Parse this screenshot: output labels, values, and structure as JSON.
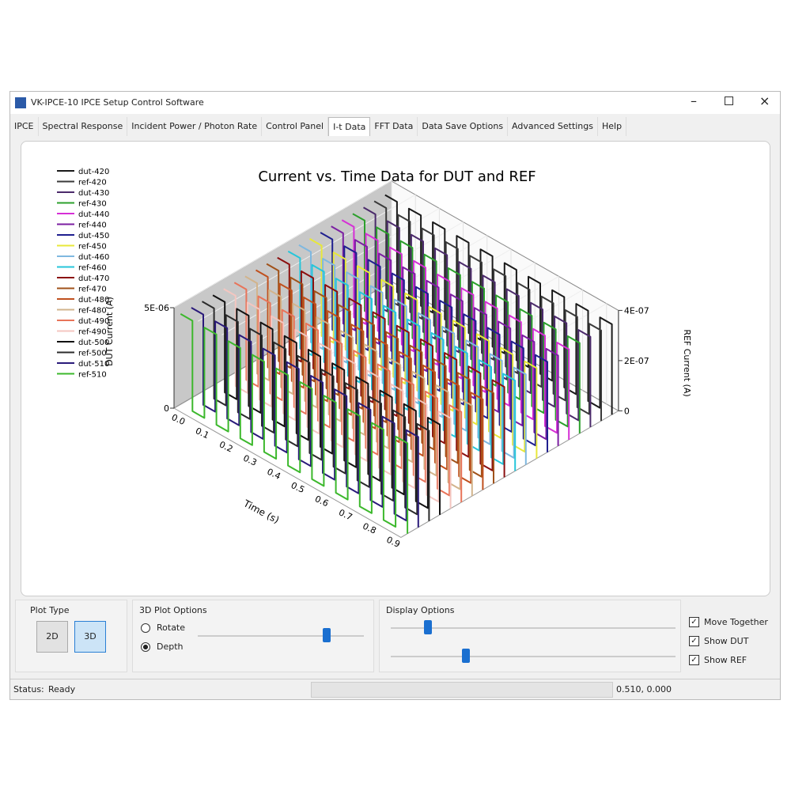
{
  "window": {
    "title": "VK-IPCE-10 IPCE Setup Control Software"
  },
  "tabs": [
    {
      "label": "IPCE"
    },
    {
      "label": "Spectral Response"
    },
    {
      "label": "Incident Power / Photon Rate"
    },
    {
      "label": "Control Panel"
    },
    {
      "label": "I-t Data",
      "active": true
    },
    {
      "label": "FFT Data"
    },
    {
      "label": "Data Save Options"
    },
    {
      "label": "Advanced Settings"
    },
    {
      "label": "Help"
    }
  ],
  "chart_data": {
    "type": "3d-waterfall",
    "title": "Current vs. Time Data for DUT and REF",
    "x_label": "Time (s)",
    "y_label": "DUT Current (A)",
    "y2_label": "REF Current (A)",
    "step": true,
    "xlim": [
      0,
      0.95
    ],
    "ylim": [
      0,
      5e-06
    ],
    "y2lim": [
      0,
      4e-07
    ],
    "xticks": [
      {
        "value": 0,
        "label": "0.0"
      },
      0.1,
      0.2,
      0.3,
      0.4,
      0.5,
      0.6,
      0.7,
      0.8,
      0.9
    ],
    "yticks": [
      0,
      {
        "value": 5e-06,
        "label": "5E-06"
      }
    ],
    "y2ticks": [
      0,
      {
        "value": 2e-07,
        "label": "2E-07"
      },
      {
        "value": 4e-07,
        "label": "4E-07"
      }
    ],
    "x": [
      0,
      0.05,
      0.1,
      0.15,
      0.2,
      0.25,
      0.3,
      0.35,
      0.4,
      0.45,
      0.5,
      0.55,
      0.6,
      0.65,
      0.7,
      0.75,
      0.8,
      0.85,
      0.9,
      0.95
    ],
    "series": [
      {
        "name": "dut-420",
        "color": "#1a1a1a",
        "values": [
          4.5e-06,
          0,
          4.5e-06,
          0,
          4.5e-06,
          0,
          4.5e-06,
          0,
          4.5e-06,
          0,
          4.5e-06,
          0,
          4.5e-06,
          0,
          4.5e-06,
          0,
          4.5e-06,
          0,
          4.5e-06,
          0
        ]
      },
      {
        "name": "ref-420",
        "color": "#3a3a3a",
        "axis": "y2",
        "values": [
          3.6e-07,
          0,
          3.6e-07,
          0,
          3.6e-07,
          0,
          3.6e-07,
          0,
          3.6e-07,
          0,
          3.6e-07,
          0,
          3.6e-07,
          0,
          3.6e-07,
          0,
          3.6e-07,
          0,
          3.6e-07,
          0
        ]
      },
      {
        "name": "dut-430",
        "color": "#4b2a6b",
        "values": [
          4.5e-06,
          0,
          4.5e-06,
          0,
          4.5e-06,
          0,
          4.5e-06,
          0,
          4.5e-06,
          0,
          4.5e-06,
          0,
          4.5e-06,
          0,
          4.5e-06,
          0,
          4.5e-06,
          0,
          4.5e-06,
          0
        ]
      },
      {
        "name": "ref-430",
        "color": "#2ca02c",
        "axis": "y2",
        "values": [
          3.6e-07,
          0,
          3.6e-07,
          0,
          3.6e-07,
          0,
          3.6e-07,
          0,
          3.6e-07,
          0,
          3.6e-07,
          0,
          3.6e-07,
          0,
          3.6e-07,
          0,
          3.6e-07,
          0,
          3.6e-07,
          0
        ]
      },
      {
        "name": "dut-440",
        "color": "#d62fd6",
        "values": [
          4.5e-06,
          0,
          4.5e-06,
          0,
          4.5e-06,
          0,
          4.5e-06,
          0,
          4.5e-06,
          0,
          4.5e-06,
          0,
          4.5e-06,
          0,
          4.5e-06,
          0,
          4.5e-06,
          0,
          4.5e-06,
          0
        ]
      },
      {
        "name": "ref-440",
        "color": "#7b1fa2",
        "axis": "y2",
        "values": [
          3.6e-07,
          0,
          3.6e-07,
          0,
          3.6e-07,
          0,
          3.6e-07,
          0,
          3.6e-07,
          0,
          3.6e-07,
          0,
          3.6e-07,
          0,
          3.6e-07,
          0,
          3.6e-07,
          0,
          3.6e-07,
          0
        ]
      },
      {
        "name": "dut-450",
        "color": "#1f1f8f",
        "values": [
          4.5e-06,
          0,
          4.5e-06,
          0,
          4.5e-06,
          0,
          4.5e-06,
          0,
          4.5e-06,
          0,
          4.5e-06,
          0,
          4.5e-06,
          0,
          4.5e-06,
          0,
          4.5e-06,
          0,
          4.5e-06,
          0
        ]
      },
      {
        "name": "ref-450",
        "color": "#e8e83a",
        "axis": "y2",
        "values": [
          3.6e-07,
          0,
          3.6e-07,
          0,
          3.6e-07,
          0,
          3.6e-07,
          0,
          3.6e-07,
          0,
          3.6e-07,
          0,
          3.6e-07,
          0,
          3.6e-07,
          0,
          3.6e-07,
          0,
          3.6e-07,
          0
        ]
      },
      {
        "name": "dut-460",
        "color": "#7fb8e0",
        "values": [
          4.5e-06,
          0,
          4.5e-06,
          0,
          4.5e-06,
          0,
          4.5e-06,
          0,
          4.5e-06,
          0,
          4.5e-06,
          0,
          4.5e-06,
          0,
          4.5e-06,
          0,
          4.5e-06,
          0,
          4.5e-06,
          0
        ]
      },
      {
        "name": "ref-460",
        "color": "#26c6da",
        "axis": "y2",
        "values": [
          3.6e-07,
          0,
          3.6e-07,
          0,
          3.6e-07,
          0,
          3.6e-07,
          0,
          3.6e-07,
          0,
          3.6e-07,
          0,
          3.6e-07,
          0,
          3.6e-07,
          0,
          3.6e-07,
          0,
          3.6e-07,
          0
        ]
      },
      {
        "name": "dut-470",
        "color": "#8b1010",
        "values": [
          4.5e-06,
          0,
          4.5e-06,
          0,
          4.5e-06,
          0,
          4.5e-06,
          0,
          4.5e-06,
          0,
          4.5e-06,
          0,
          4.5e-06,
          0,
          4.5e-06,
          0,
          4.5e-06,
          0,
          4.5e-06,
          0
        ]
      },
      {
        "name": "ref-470",
        "color": "#a0521a",
        "axis": "y2",
        "values": [
          3.6e-07,
          0,
          3.6e-07,
          0,
          3.6e-07,
          0,
          3.6e-07,
          0,
          3.6e-07,
          0,
          3.6e-07,
          0,
          3.6e-07,
          0,
          3.6e-07,
          0,
          3.6e-07,
          0,
          3.6e-07,
          0
        ]
      },
      {
        "name": "dut-480",
        "color": "#c0501e",
        "values": [
          4.5e-06,
          0,
          4.5e-06,
          0,
          4.5e-06,
          0,
          4.5e-06,
          0,
          4.5e-06,
          0,
          4.5e-06,
          0,
          4.5e-06,
          0,
          4.5e-06,
          0,
          4.5e-06,
          0,
          4.5e-06,
          0
        ]
      },
      {
        "name": "ref-480",
        "color": "#d2b48c",
        "axis": "y2",
        "values": [
          3.6e-07,
          0,
          3.6e-07,
          0,
          3.6e-07,
          0,
          3.6e-07,
          0,
          3.6e-07,
          0,
          3.6e-07,
          0,
          3.6e-07,
          0,
          3.6e-07,
          0,
          3.6e-07,
          0,
          3.6e-07,
          0
        ]
      },
      {
        "name": "dut-490",
        "color": "#e8745a",
        "values": [
          4.5e-06,
          0,
          4.5e-06,
          0,
          4.5e-06,
          0,
          4.5e-06,
          0,
          4.5e-06,
          0,
          4.5e-06,
          0,
          4.5e-06,
          0,
          4.5e-06,
          0,
          4.5e-06,
          0,
          4.5e-06,
          0
        ]
      },
      {
        "name": "ref-490",
        "color": "#f4c6c0",
        "axis": "y2",
        "values": [
          3.6e-07,
          0,
          3.6e-07,
          0,
          3.6e-07,
          0,
          3.6e-07,
          0,
          3.6e-07,
          0,
          3.6e-07,
          0,
          3.6e-07,
          0,
          3.6e-07,
          0,
          3.6e-07,
          0,
          3.6e-07,
          0
        ]
      },
      {
        "name": "dut-500",
        "color": "#111111",
        "values": [
          4.5e-06,
          0,
          4.5e-06,
          0,
          4.5e-06,
          0,
          4.5e-06,
          0,
          4.5e-06,
          0,
          4.5e-06,
          0,
          4.5e-06,
          0,
          4.5e-06,
          0,
          4.5e-06,
          0,
          4.5e-06,
          0
        ]
      },
      {
        "name": "ref-500",
        "color": "#2b2b2b",
        "axis": "y2",
        "values": [
          3.6e-07,
          0,
          3.6e-07,
          0,
          3.6e-07,
          0,
          3.6e-07,
          0,
          3.6e-07,
          0,
          3.6e-07,
          0,
          3.6e-07,
          0,
          3.6e-07,
          0,
          3.6e-07,
          0,
          3.6e-07,
          0
        ]
      },
      {
        "name": "dut-510",
        "color": "#2a1a7a",
        "values": [
          4.5e-06,
          0,
          4.5e-06,
          0,
          4.5e-06,
          0,
          4.5e-06,
          0,
          4.5e-06,
          0,
          4.5e-06,
          0,
          4.5e-06,
          0,
          4.5e-06,
          0,
          4.5e-06,
          0,
          4.5e-06,
          0
        ]
      },
      {
        "name": "ref-510",
        "color": "#3cb82c",
        "axis": "y2",
        "values": [
          3.6e-07,
          0,
          3.6e-07,
          0,
          3.6e-07,
          0,
          3.6e-07,
          0,
          3.6e-07,
          0,
          3.6e-07,
          0,
          3.6e-07,
          0,
          3.6e-07,
          0,
          3.6e-07,
          0,
          3.6e-07,
          0
        ]
      }
    ]
  },
  "controls": {
    "plot_type": {
      "title": "Plot Type",
      "buttons": [
        {
          "label": "2D",
          "active": false
        },
        {
          "label": "3D",
          "active": true
        }
      ]
    },
    "plot_options": {
      "title": "3D Plot Options",
      "radios": [
        {
          "label": "Rotate",
          "selected": false
        },
        {
          "label": "Depth",
          "selected": true
        }
      ]
    },
    "display_options": {
      "title": "Display Options"
    },
    "checkboxes": [
      {
        "label": "Move Together",
        "checked": true
      },
      {
        "label": "Show DUT",
        "checked": true
      },
      {
        "label": "Show REF",
        "checked": true
      }
    ]
  },
  "status": {
    "label": "Status:",
    "text": "Ready",
    "coords": "0.510, 0.000"
  }
}
